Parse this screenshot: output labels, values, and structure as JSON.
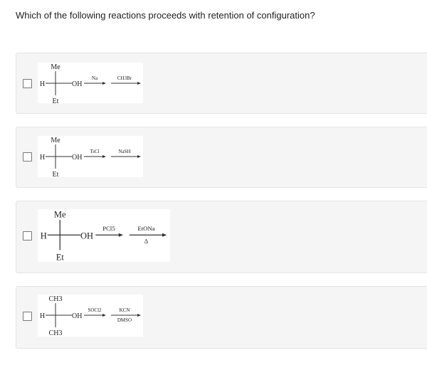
{
  "question": "Which of the following reactions proceeds with retention of configuration?",
  "options": [
    {
      "top": "Me",
      "left": "H",
      "right": "OH",
      "bottom": "Et",
      "reagent1": "Na",
      "reagent1_below": "",
      "reagent2": "CH3Br",
      "reagent2_below": ""
    },
    {
      "top": "Me",
      "left": "H",
      "right": "OH",
      "bottom": "Et",
      "reagent1": "TsCl",
      "reagent1_below": "",
      "reagent2": "NaSH",
      "reagent2_below": ""
    },
    {
      "top": "Me",
      "left": "H",
      "right": "OH",
      "bottom": "Et",
      "reagent1": "PCl5",
      "reagent1_below": "",
      "reagent2": "EtONa",
      "reagent2_below": "Δ"
    },
    {
      "top": "CH3",
      "left": "H",
      "right": "OH",
      "bottom": "CH3",
      "reagent1": "SOCl2",
      "reagent1_below": "",
      "reagent2": "KCN",
      "reagent2_below": "DMSO"
    }
  ]
}
